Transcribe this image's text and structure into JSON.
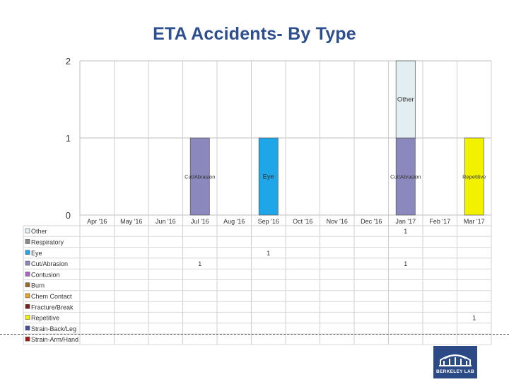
{
  "title": "ETA Accidents- By Type",
  "chart_data": {
    "type": "bar",
    "stacked": true,
    "title": "ETA Accidents- By Type",
    "categories": [
      "Apr '16",
      "May '16",
      "Jun '16",
      "Jul '16",
      "Aug '16",
      "Sep '16",
      "Oct '16",
      "Nov '16",
      "Dec '16",
      "Jan '17",
      "Feb '17",
      "Mar '17"
    ],
    "ylim": [
      0,
      2
    ],
    "yticks": [
      "0",
      "1",
      "2"
    ],
    "grid": true,
    "legend": "data-table-below",
    "series": [
      {
        "name": "Other",
        "color": "#e3eef2",
        "values": [
          0,
          0,
          0,
          0,
          0,
          0,
          0,
          0,
          0,
          1,
          0,
          0
        ],
        "bar_label": "Other"
      },
      {
        "name": "Respiratory",
        "color": "#8a8a8a",
        "values": [
          0,
          0,
          0,
          0,
          0,
          0,
          0,
          0,
          0,
          0,
          0,
          0
        ],
        "bar_label": "Respiratory"
      },
      {
        "name": "Eye",
        "color": "#1fa6e8",
        "values": [
          0,
          0,
          0,
          0,
          0,
          1,
          0,
          0,
          0,
          0,
          0,
          0
        ],
        "bar_label": "Eye"
      },
      {
        "name": "Cut/Abrasion",
        "color": "#8b88bd",
        "values": [
          0,
          0,
          0,
          1,
          0,
          0,
          0,
          0,
          0,
          1,
          0,
          0
        ],
        "bar_label": "Cut/Abrasion"
      },
      {
        "name": "Contusion",
        "color": "#b064c8",
        "values": [
          0,
          0,
          0,
          0,
          0,
          0,
          0,
          0,
          0,
          0,
          0,
          0
        ],
        "bar_label": "Contusion"
      },
      {
        "name": "Burn",
        "color": "#9a6b2f",
        "values": [
          0,
          0,
          0,
          0,
          0,
          0,
          0,
          0,
          0,
          0,
          0,
          0
        ],
        "bar_label": "Burn"
      },
      {
        "name": "Chem Contact",
        "color": "#e4a12a",
        "values": [
          0,
          0,
          0,
          0,
          0,
          0,
          0,
          0,
          0,
          0,
          0,
          0
        ],
        "bar_label": "Chem Contact"
      },
      {
        "name": "Fracture/Break",
        "color": "#7a1f1f",
        "values": [
          0,
          0,
          0,
          0,
          0,
          0,
          0,
          0,
          0,
          0,
          0,
          0
        ],
        "bar_label": "Fracture/Break"
      },
      {
        "name": "Repetitive",
        "color": "#f2f200",
        "values": [
          0,
          0,
          0,
          0,
          0,
          0,
          0,
          0,
          0,
          0,
          0,
          1
        ],
        "bar_label": "Repetitive"
      },
      {
        "name": "Strain-Back/Leg",
        "color": "#4b4f9e",
        "values": [
          0,
          0,
          0,
          0,
          0,
          0,
          0,
          0,
          0,
          0,
          0,
          0
        ],
        "bar_label": "Strain-Back/Leg"
      },
      {
        "name": "Strain-Arm/Hand",
        "color": "#a01a1a",
        "values": [
          0,
          0,
          0,
          0,
          0,
          0,
          0,
          0,
          0,
          0,
          0,
          0
        ],
        "bar_label": "Strain-Arm/Hand"
      }
    ],
    "stack_order": [
      "Cut/Abrasion",
      "Eye",
      "Repetitive",
      "Other",
      "Respiratory",
      "Contusion",
      "Burn",
      "Chem Contact",
      "Fracture/Break",
      "Strain-Back/Leg",
      "Strain-Arm/Hand"
    ]
  },
  "logo": {
    "text": "BERKELEY LAB",
    "color": "#2c4a86"
  }
}
